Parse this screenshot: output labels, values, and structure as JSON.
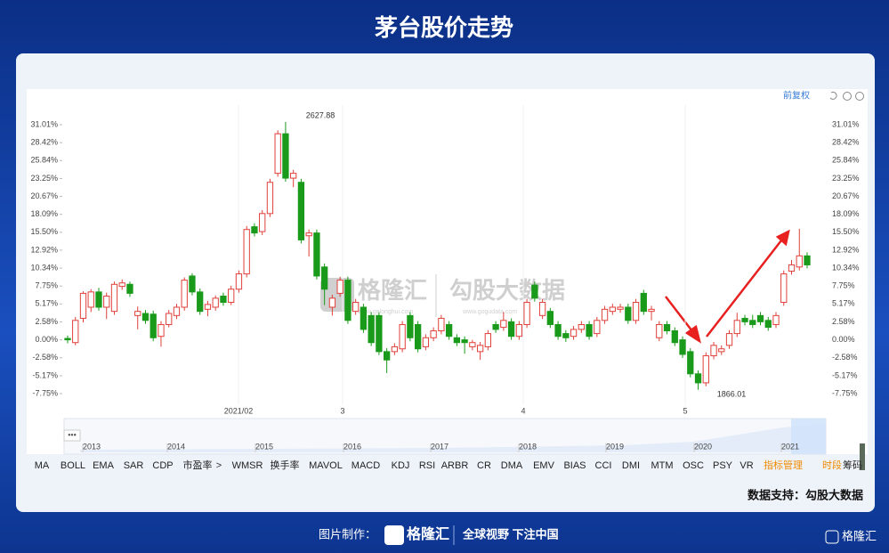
{
  "header": {
    "title": "茅台股价走势"
  },
  "toolbar_top": {
    "adjust": "前复权"
  },
  "chart_data": {
    "type": "candlestick",
    "fields": [
      "open",
      "high",
      "low",
      "close"
    ],
    "up_color": "#e0403a",
    "down_color": "#1a9a1a",
    "grid": false,
    "ylim": [
      -9.42,
      33.32
    ],
    "yticks": [
      {
        "value": 31.01,
        "label": "31.01%"
      },
      {
        "value": 28.42,
        "label": "28.42%"
      },
      {
        "value": 25.84,
        "label": "25.84%"
      },
      {
        "value": 23.25,
        "label": "23.25%"
      },
      {
        "value": 20.67,
        "label": "20.67%"
      },
      {
        "value": 18.09,
        "label": "18.09%"
      },
      {
        "value": 15.5,
        "label": "15.50%"
      },
      {
        "value": 12.92,
        "label": "12.92%"
      },
      {
        "value": 10.34,
        "label": "10.34%"
      },
      {
        "value": 7.75,
        "label": "7.75%"
      },
      {
        "value": 5.17,
        "label": "5.17%"
      },
      {
        "value": 2.58,
        "label": "2.58%"
      },
      {
        "value": 0,
        "label": "0.00%"
      },
      {
        "value": -2.58,
        "label": "-2.58%"
      },
      {
        "value": -5.17,
        "label": "-5.17%"
      },
      {
        "value": -7.75,
        "label": "-7.75%"
      }
    ],
    "x_labels": [
      "2021/02",
      "3",
      "4",
      "5"
    ],
    "annotations": [
      "2627.88",
      "1866.01"
    ],
    "candles": [
      [
        0.2,
        0.6,
        -0.5,
        0.0
      ],
      [
        -0.4,
        3.3,
        -0.8,
        2.8
      ],
      [
        3.1,
        7.0,
        2.5,
        6.7
      ],
      [
        4.7,
        7.3,
        4.0,
        6.9
      ],
      [
        6.9,
        7.5,
        4.2,
        4.7
      ],
      [
        4.7,
        6.8,
        3.0,
        6.3
      ],
      [
        4.1,
        8.4,
        3.6,
        8.0
      ],
      [
        7.7,
        8.7,
        7.2,
        8.2
      ],
      [
        8.0,
        8.4,
        6.2,
        6.7
      ],
      [
        3.5,
        4.8,
        1.5,
        4.1
      ],
      [
        3.8,
        4.3,
        2.3,
        2.8
      ],
      [
        3.7,
        4.2,
        -0.2,
        0.3
      ],
      [
        0.5,
        2.7,
        -1.0,
        2.2
      ],
      [
        2.2,
        4.3,
        1.8,
        3.8
      ],
      [
        3.5,
        5.2,
        3.0,
        4.7
      ],
      [
        4.7,
        9.0,
        4.2,
        8.6
      ],
      [
        9.2,
        9.6,
        6.4,
        6.9
      ],
      [
        6.9,
        7.4,
        3.6,
        4.1
      ],
      [
        4.4,
        5.6,
        3.4,
        5.1
      ],
      [
        4.7,
        6.4,
        4.2,
        6.0
      ],
      [
        6.3,
        6.8,
        4.9,
        5.4
      ],
      [
        5.4,
        7.8,
        5.0,
        7.3
      ],
      [
        7.3,
        10.0,
        6.8,
        9.5
      ],
      [
        9.5,
        16.4,
        9.0,
        15.9
      ],
      [
        16.3,
        16.8,
        14.9,
        15.4
      ],
      [
        15.6,
        18.7,
        15.1,
        18.2
      ],
      [
        18.2,
        23.2,
        17.7,
        22.7
      ],
      [
        24.0,
        30.2,
        23.5,
        29.7
      ],
      [
        29.7,
        31.4,
        22.8,
        23.3
      ],
      [
        23.3,
        24.5,
        22.0,
        24.0
      ],
      [
        22.7,
        23.2,
        13.9,
        14.4
      ],
      [
        15.0,
        15.9,
        12.0,
        15.4
      ],
      [
        15.4,
        15.9,
        8.7,
        9.2
      ],
      [
        10.5,
        11.0,
        5.0,
        7.3
      ],
      [
        4.7,
        6.5,
        3.5,
        6.0
      ],
      [
        6.7,
        9.1,
        6.2,
        8.6
      ],
      [
        8.6,
        9.1,
        2.3,
        2.8
      ],
      [
        4.1,
        5.9,
        3.6,
        5.4
      ],
      [
        4.7,
        5.2,
        1.0,
        1.5
      ],
      [
        3.5,
        4.0,
        -0.9,
        -0.4
      ],
      [
        3.5,
        4.0,
        -2.2,
        -1.7
      ],
      [
        -1.7,
        -1.2,
        -4.8,
        -2.9
      ],
      [
        -1.7,
        -0.5,
        -2.2,
        -1.0
      ],
      [
        -1.3,
        2.7,
        -1.8,
        2.2
      ],
      [
        3.5,
        4.0,
        -0.2,
        0.3
      ],
      [
        2.2,
        2.7,
        -1.8,
        -1.3
      ],
      [
        -1.0,
        0.8,
        -1.5,
        0.3
      ],
      [
        0.3,
        1.8,
        -0.2,
        1.3
      ],
      [
        1.3,
        3.6,
        0.8,
        3.1
      ],
      [
        2.2,
        2.7,
        0.0,
        0.5
      ],
      [
        0.3,
        0.8,
        -0.9,
        -0.4
      ],
      [
        0.0,
        0.5,
        -2.0,
        -0.4
      ],
      [
        -1.0,
        0.0,
        -1.5,
        -0.4
      ],
      [
        -1.7,
        -0.3,
        -2.9,
        -0.8
      ],
      [
        -1.0,
        1.4,
        -1.5,
        0.9
      ],
      [
        2.2,
        2.7,
        1.0,
        1.5
      ],
      [
        1.8,
        4.0,
        1.3,
        2.8
      ],
      [
        2.6,
        3.1,
        0.0,
        0.5
      ],
      [
        0.5,
        2.7,
        0.0,
        2.2
      ],
      [
        2.2,
        5.9,
        1.7,
        5.4
      ],
      [
        7.9,
        8.4,
        5.5,
        6.0
      ],
      [
        3.5,
        5.9,
        3.0,
        5.4
      ],
      [
        4.1,
        4.6,
        1.7,
        2.2
      ],
      [
        2.2,
        2.7,
        0.0,
        0.5
      ],
      [
        0.9,
        1.4,
        -0.3,
        0.3
      ],
      [
        0.5,
        2.0,
        0.0,
        1.5
      ],
      [
        1.5,
        2.7,
        1.0,
        2.2
      ],
      [
        2.2,
        2.7,
        0.0,
        0.5
      ],
      [
        0.9,
        3.3,
        0.4,
        2.8
      ],
      [
        2.8,
        4.9,
        2.3,
        4.4
      ],
      [
        4.1,
        5.2,
        3.6,
        4.7
      ],
      [
        4.4,
        5.2,
        3.9,
        4.7
      ],
      [
        4.7,
        5.2,
        2.3,
        2.8
      ],
      [
        2.8,
        5.9,
        2.3,
        5.4
      ],
      [
        6.7,
        7.2,
        3.6,
        4.1
      ],
      [
        4.1,
        4.9,
        2.8,
        4.4
      ],
      [
        0.3,
        2.7,
        -0.2,
        2.2
      ],
      [
        2.2,
        2.7,
        0.8,
        1.3
      ],
      [
        1.3,
        1.8,
        -0.9,
        -0.4
      ],
      [
        0.0,
        0.5,
        -2.6,
        -2.1
      ],
      [
        -1.7,
        -1.2,
        -5.4,
        -4.9
      ],
      [
        -4.9,
        -4.4,
        -7.2,
        -6.2
      ],
      [
        -6.2,
        -1.8,
        -6.7,
        -2.3
      ],
      [
        -2.3,
        -0.3,
        -2.8,
        -0.8
      ],
      [
        -1.7,
        -0.8,
        -2.2,
        -1.3
      ],
      [
        -0.8,
        1.4,
        -1.3,
        0.9
      ],
      [
        0.9,
        3.9,
        0.4,
        2.8
      ],
      [
        3.1,
        3.6,
        2.1,
        2.6
      ],
      [
        2.8,
        3.6,
        1.7,
        2.2
      ],
      [
        3.5,
        4.0,
        2.1,
        2.6
      ],
      [
        2.8,
        3.3,
        1.3,
        1.8
      ],
      [
        2.2,
        4.0,
        1.7,
        3.5
      ],
      [
        5.4,
        10.0,
        4.9,
        9.5
      ],
      [
        9.9,
        11.5,
        9.4,
        10.8
      ],
      [
        10.5,
        16.0,
        10.0,
        12.1
      ],
      [
        12.1,
        12.6,
        10.3,
        10.8
      ]
    ],
    "navigator_years": [
      "2013",
      "2014",
      "2015",
      "2016",
      "2017",
      "2018",
      "2019",
      "2020",
      "2021"
    ]
  },
  "watermark": {
    "left": "格隆汇",
    "left_url": "www.gelonghui.com",
    "right": "勾股大数据",
    "right_url": "www.gogudata.com"
  },
  "indicators": [
    "MA",
    "BOLL",
    "EMA",
    "SAR",
    "CDP",
    "市盈率",
    "WMSR",
    "换手率",
    "MAVOL",
    "MACD",
    "KDJ",
    "RSI",
    "ARBR",
    "CR",
    "DMA",
    "EMV",
    "BIAS",
    "CCI",
    "DMI",
    "MTM",
    "OSC",
    "PSY",
    "VR",
    "指标管理",
    "时段",
    "筹码"
  ],
  "source": "数据支持：勾股大数据",
  "footer": {
    "made_by": "图片制作：",
    "brand": "格隆汇",
    "slogan": "全球视野 下注中国",
    "corner": "格隆汇"
  }
}
